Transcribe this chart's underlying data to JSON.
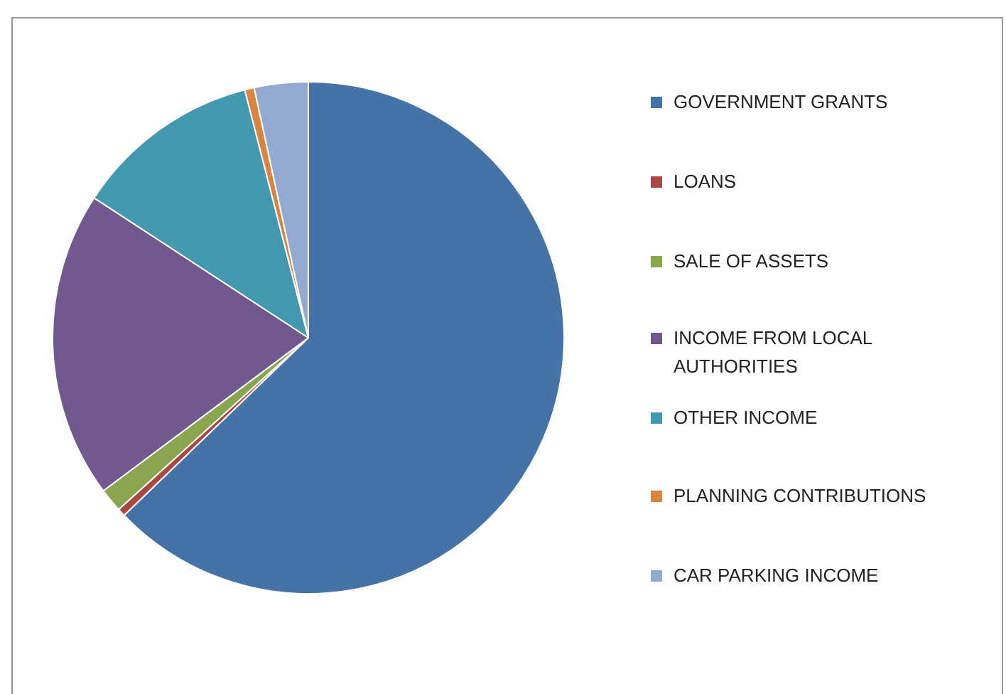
{
  "chart_data": {
    "type": "pie",
    "categories": [
      "GOVERNMENT GRANTS",
      "LOANS",
      "SALE OF ASSETS",
      "INCOME FROM LOCAL AUTHORITIES",
      "OTHER INCOME",
      "PLANNING CONTRIBUTIONS",
      "CAR PARKING INCOME"
    ],
    "values": [
      62.8,
      0.5,
      1.5,
      19.4,
      11.8,
      0.6,
      3.4
    ],
    "colors": [
      "#4572a7",
      "#aa4643",
      "#89a54e",
      "#71588f",
      "#4198af",
      "#db843d",
      "#93a9cf"
    ],
    "legend": "right"
  }
}
